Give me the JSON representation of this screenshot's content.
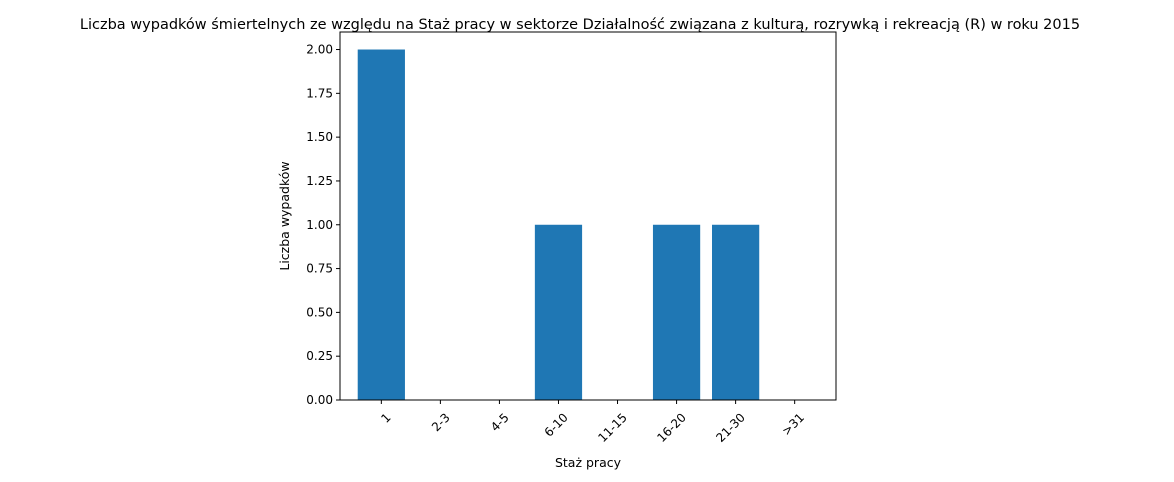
{
  "chart_data": {
    "type": "bar",
    "title": "Liczba wypadków śmiertelnych ze względu na Staż pracy w sektorze Działalność związana z kulturą, rozrywką i rekreacją (R) w roku 2015",
    "xlabel": "Staż pracy",
    "ylabel": "Liczba wypadków",
    "categories": [
      "1",
      "2-3",
      "4-5",
      "6-10",
      "11-15",
      "16-20",
      "21-30",
      ">31"
    ],
    "values": [
      2,
      0,
      0,
      1,
      0,
      1,
      1,
      0
    ],
    "ylim": [
      0,
      2.1
    ],
    "yticks": [
      "0.00",
      "0.25",
      "0.50",
      "0.75",
      "1.00",
      "1.25",
      "1.50",
      "1.75",
      "2.00"
    ],
    "bar_color": "#1f77b4",
    "grid": false,
    "legend": "none"
  }
}
